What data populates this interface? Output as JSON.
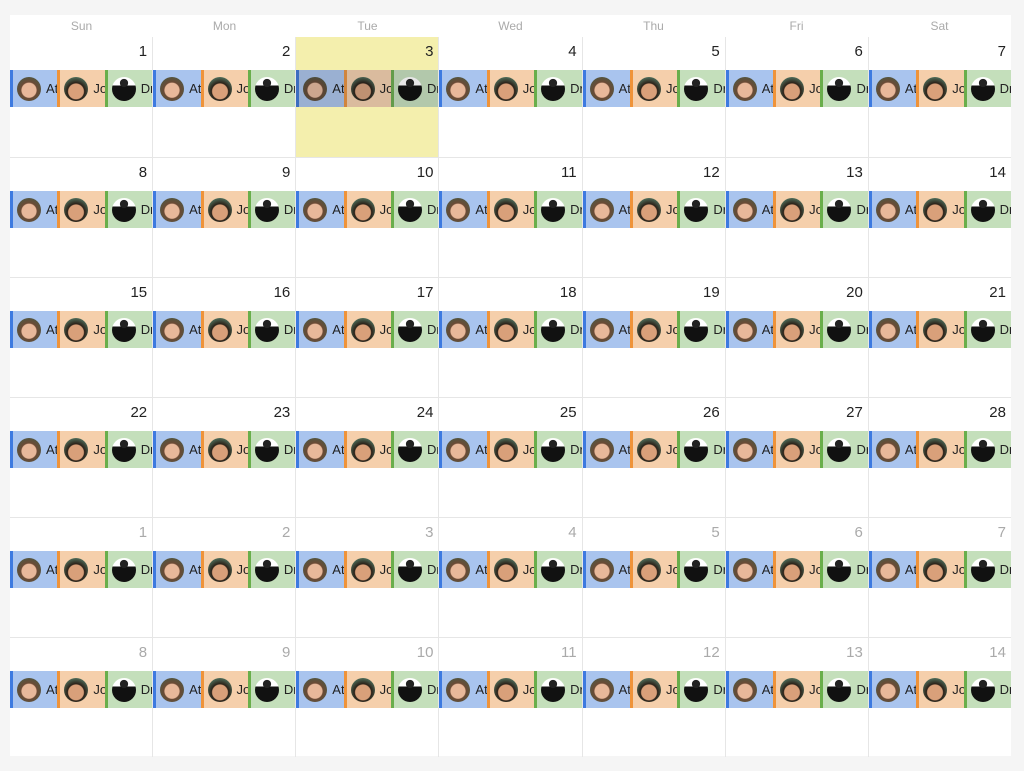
{
  "weekdays": [
    "Sun",
    "Mon",
    "Tue",
    "Wed",
    "Thu",
    "Fri",
    "Sat"
  ],
  "today": 3,
  "weeks": [
    [
      {
        "d": 1
      },
      {
        "d": 2
      },
      {
        "d": 3,
        "today": true
      },
      {
        "d": 4
      },
      {
        "d": 5
      },
      {
        "d": 6
      },
      {
        "d": 7
      }
    ],
    [
      {
        "d": 8
      },
      {
        "d": 9
      },
      {
        "d": 10
      },
      {
        "d": 11
      },
      {
        "d": 12
      },
      {
        "d": 13
      },
      {
        "d": 14
      }
    ],
    [
      {
        "d": 15
      },
      {
        "d": 16
      },
      {
        "d": 17
      },
      {
        "d": 18
      },
      {
        "d": 19
      },
      {
        "d": 20
      },
      {
        "d": 21
      }
    ],
    [
      {
        "d": 22
      },
      {
        "d": 23
      },
      {
        "d": 24
      },
      {
        "d": 25
      },
      {
        "d": 26
      },
      {
        "d": 27
      },
      {
        "d": 28
      }
    ],
    [
      {
        "d": 1,
        "other": true
      },
      {
        "d": 2,
        "other": true
      },
      {
        "d": 3,
        "other": true
      },
      {
        "d": 4,
        "other": true
      },
      {
        "d": 5,
        "other": true
      },
      {
        "d": 6,
        "other": true
      },
      {
        "d": 7,
        "other": true
      }
    ],
    [
      {
        "d": 8,
        "other": true
      },
      {
        "d": 9,
        "other": true
      },
      {
        "d": 10,
        "other": true
      },
      {
        "d": 11,
        "other": true
      },
      {
        "d": 12,
        "other": true
      },
      {
        "d": 13,
        "other": true
      },
      {
        "d": 14,
        "other": true
      }
    ]
  ],
  "events": [
    {
      "label": "At",
      "bg": "#a9c4ee",
      "border": "#3d7ae0",
      "avatar": "woman-avatar-1"
    },
    {
      "label": "Jo",
      "bg": "#f5cfab",
      "border": "#ef9339",
      "avatar": "woman-avatar-2"
    },
    {
      "label": "Dr",
      "bg": "#c4dfbb",
      "border": "#69ae4b",
      "avatar": "man-avatar"
    }
  ],
  "colors": {
    "today_bg": "#f4efad",
    "grid": "#e6e6e6"
  }
}
